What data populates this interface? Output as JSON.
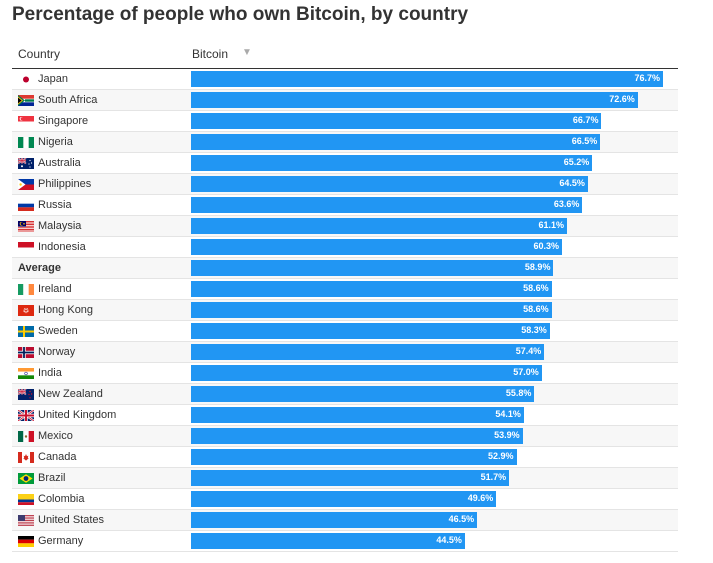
{
  "title": "Percentage of people who own Bitcoin, by country",
  "header": {
    "country_label": "Country",
    "series_label": "Bitcoin",
    "sort_glyph": "▼"
  },
  "chart_data": {
    "type": "bar",
    "title": "Percentage of people who own Bitcoin, by country",
    "xlabel": "Bitcoin",
    "ylabel": "Country",
    "xlim": [
      0,
      80
    ],
    "categories": [
      "Japan",
      "South Africa",
      "Singapore",
      "Nigeria",
      "Australia",
      "Philippines",
      "Russia",
      "Malaysia",
      "Indonesia",
      "Average",
      "Ireland",
      "Hong Kong",
      "Sweden",
      "Norway",
      "India",
      "New Zealand",
      "United Kingdom",
      "Mexico",
      "Canada",
      "Brazil",
      "Colombia",
      "United States",
      "Germany"
    ],
    "values": [
      76.7,
      72.6,
      66.7,
      66.5,
      65.2,
      64.5,
      63.6,
      61.1,
      60.3,
      58.9,
      58.6,
      58.6,
      58.3,
      57.4,
      57.0,
      55.8,
      54.1,
      53.9,
      52.9,
      51.7,
      49.6,
      46.5,
      44.5
    ],
    "labels": [
      "76.7%",
      "72.6%",
      "66.7%",
      "66.5%",
      "65.2%",
      "64.5%",
      "63.6%",
      "61.1%",
      "60.3%",
      "58.9%",
      "58.6%",
      "58.6%",
      "58.3%",
      "57.4%",
      "57.0%",
      "55.8%",
      "54.1%",
      "53.9%",
      "52.9%",
      "51.7%",
      "49.6%",
      "46.5%",
      "44.5%"
    ],
    "flags": [
      "japan-flag-icon",
      "south-africa-flag-icon",
      "singapore-flag-icon",
      "nigeria-flag-icon",
      "australia-flag-icon",
      "philippines-flag-icon",
      "russia-flag-icon",
      "malaysia-flag-icon",
      "indonesia-flag-icon",
      "",
      "ireland-flag-icon",
      "hong-kong-flag-icon",
      "sweden-flag-icon",
      "norway-flag-icon",
      "india-flag-icon",
      "new-zealand-flag-icon",
      "united-kingdom-flag-icon",
      "mexico-flag-icon",
      "canada-flag-icon",
      "brazil-flag-icon",
      "colombia-flag-icon",
      "united-states-flag-icon",
      "germany-flag-icon"
    ],
    "bar_color": "#2196f3"
  }
}
